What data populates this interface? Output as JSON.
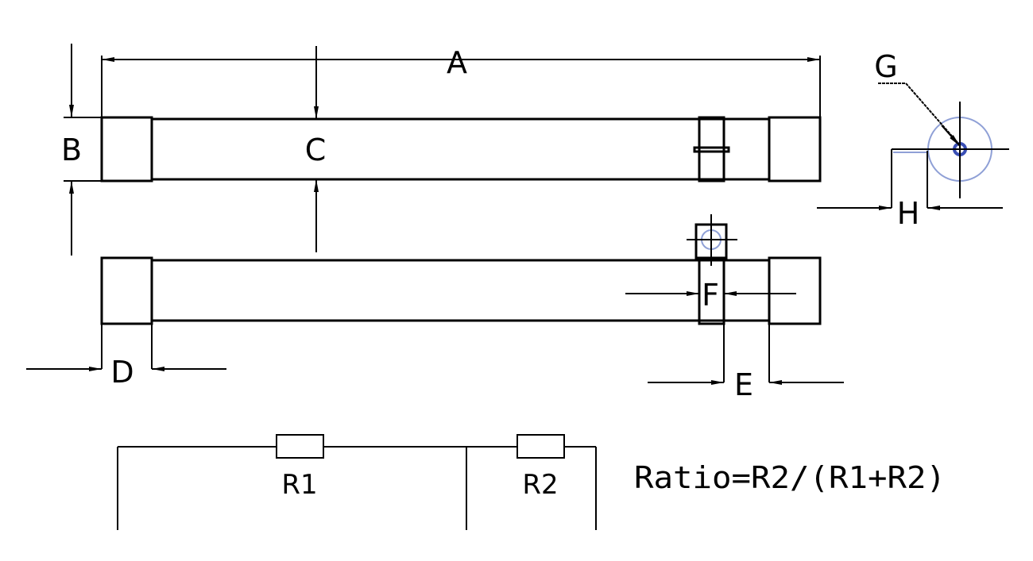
{
  "dimension_labels": {
    "A": "A",
    "B": "B",
    "C": "C",
    "D": "D",
    "E": "E",
    "F": "F",
    "G": "G",
    "H": "H"
  },
  "circuit": {
    "r1": "R1",
    "r2": "R2",
    "formula": "Ratio=R2/(R1+R2)"
  },
  "colors": {
    "line": "#000000",
    "mounting_hole": "#3a4fb5",
    "outline_circle": "#8fa0d6"
  }
}
